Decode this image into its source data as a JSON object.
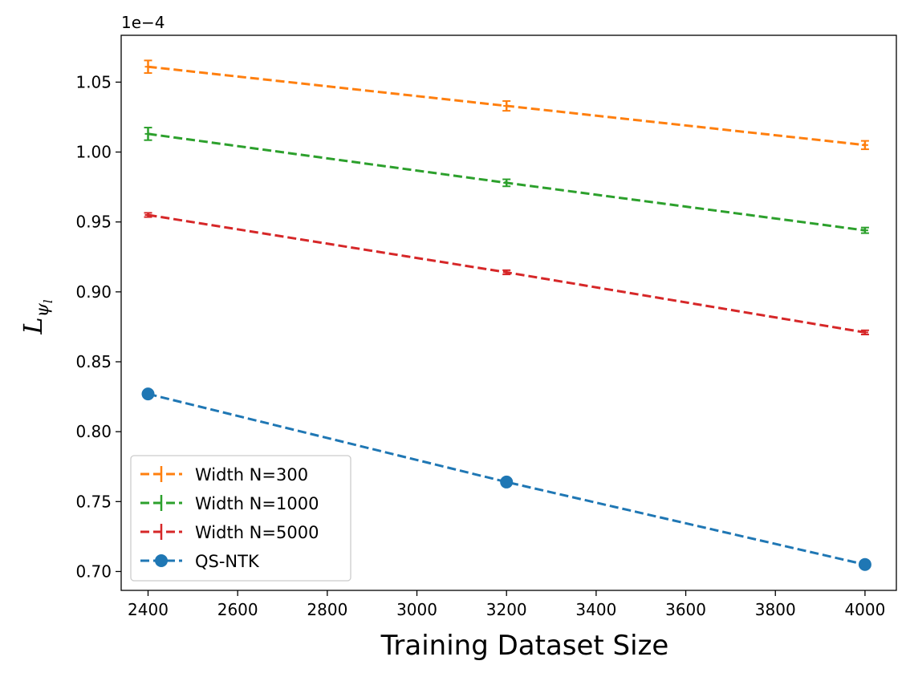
{
  "chart_data": {
    "type": "line",
    "xlabel": "Training Dataset Size",
    "ylabel_main": "L",
    "ylabel_sub": "ψ",
    "ylabel_subsub": "l",
    "y_multiplier_label": "1e−4",
    "xlim": [
      2340,
      4070
    ],
    "ylim": [
      0.6865,
      1.0835
    ],
    "x_ticks": [
      2400,
      2600,
      2800,
      3000,
      3200,
      3400,
      3600,
      3800,
      4000
    ],
    "y_ticks": [
      0.7,
      0.75,
      0.8,
      0.85,
      0.9,
      0.95,
      1.0,
      1.05
    ],
    "y_tick_labels": [
      "0.70",
      "0.75",
      "0.80",
      "0.85",
      "0.90",
      "0.95",
      "1.00",
      "1.05"
    ],
    "legend_position": "lower-left",
    "series": [
      {
        "name": "Width N=300",
        "color": "#ff7f0e",
        "marker": "errorbar",
        "x": [
          2400,
          3200,
          4000
        ],
        "y": [
          1.061,
          1.033,
          1.005
        ],
        "err": [
          0.0045,
          0.0035,
          0.003
        ]
      },
      {
        "name": "Width N=1000",
        "color": "#2ca02c",
        "marker": "errorbar",
        "x": [
          2400,
          3200,
          4000
        ],
        "y": [
          1.013,
          0.978,
          0.944
        ],
        "err": [
          0.0045,
          0.0025,
          0.002
        ]
      },
      {
        "name": "Width N=5000",
        "color": "#d62728",
        "marker": "errorbar",
        "x": [
          2400,
          3200,
          4000
        ],
        "y": [
          0.955,
          0.914,
          0.871
        ],
        "err": [
          0.0015,
          0.0015,
          0.0015
        ]
      },
      {
        "name": "QS-NTK",
        "color": "#1f77b4",
        "marker": "circle",
        "x": [
          2400,
          3200,
          4000
        ],
        "y": [
          0.827,
          0.764,
          0.705
        ],
        "err": []
      }
    ]
  }
}
